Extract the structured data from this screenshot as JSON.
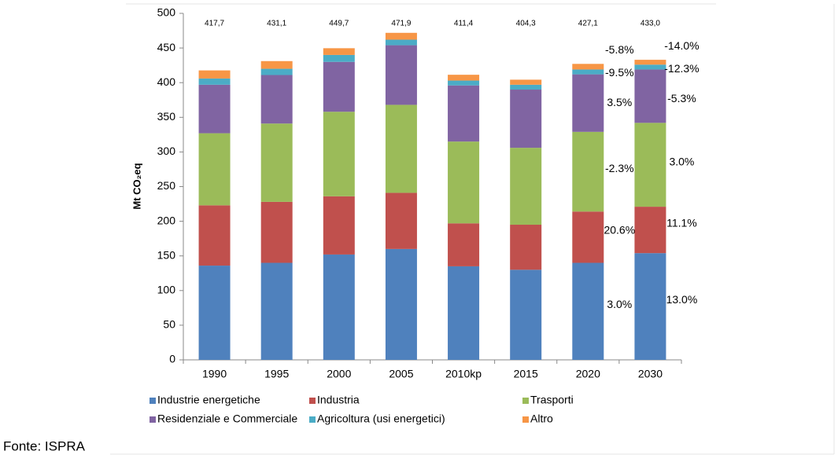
{
  "chart_data": {
    "type": "stacked_bar",
    "y_label": "Mt CO₂eq",
    "source": "Fonte: ISPRA",
    "categories": [
      "1990",
      "1995",
      "2000",
      "2005",
      "2010kp",
      "2015",
      "2020",
      "2030"
    ],
    "series": [
      {
        "name": "Industrie energetiche",
        "color": "#4f81bd",
        "values": [
          136,
          140,
          152,
          160,
          135,
          130,
          140,
          154
        ]
      },
      {
        "name": "Industria",
        "color": "#c0504d",
        "values": [
          87,
          88,
          84,
          81,
          62,
          65,
          74,
          67
        ]
      },
      {
        "name": "Trasporti",
        "color": "#9bbb59",
        "values": [
          104,
          113,
          122,
          127,
          118,
          111,
          115,
          121
        ]
      },
      {
        "name": "Residenziale e Commerciale",
        "color": "#8064a2",
        "values": [
          70,
          70,
          72,
          86,
          81,
          84,
          83,
          77
        ]
      },
      {
        "name": "Agricoltura (usi energetici)",
        "color": "#4bacc6",
        "values": [
          9,
          9,
          10,
          8,
          7,
          7,
          7,
          7
        ]
      },
      {
        "name": "Altro",
        "color": "#f79646",
        "values": [
          11.7,
          11.1,
          9.7,
          9.9,
          8.4,
          7.3,
          8.1,
          7.0
        ]
      }
    ],
    "totals": {
      "values": [
        417.7,
        431.1,
        449.7,
        471.9,
        411.4,
        404.3,
        427.1,
        433.0
      ],
      "value_labels": [
        "417,7",
        "431,1",
        "449,7",
        "471,9",
        "411,4",
        "404,3",
        "427,1",
        "433,0"
      ]
    },
    "annotations": [
      {
        "category": 6,
        "series": 5,
        "text": "-5.8%"
      },
      {
        "category": 6,
        "series": 4,
        "text": "-9.5%"
      },
      {
        "category": 6,
        "series": 3,
        "text": "3.5%"
      },
      {
        "category": 6,
        "series": 2,
        "text": "-2.3%"
      },
      {
        "category": 6,
        "series": 1,
        "text": "20.6%"
      },
      {
        "category": 6,
        "series": 0,
        "text": "3.0%"
      },
      {
        "category": 7,
        "series": 5,
        "text": "-14.0%"
      },
      {
        "category": 7,
        "series": 4,
        "text": "-12.3%"
      },
      {
        "category": 7,
        "series": 3,
        "text": "-5.3%"
      },
      {
        "category": 7,
        "series": 2,
        "text": "3.0%"
      },
      {
        "category": 7,
        "series": 1,
        "text": "11.1%"
      },
      {
        "category": 7,
        "series": 0,
        "text": "13.0%"
      }
    ],
    "ylim": [
      0,
      500
    ],
    "yticks": [
      0,
      50,
      100,
      150,
      200,
      250,
      300,
      350,
      400,
      450,
      500
    ],
    "grid": false
  }
}
